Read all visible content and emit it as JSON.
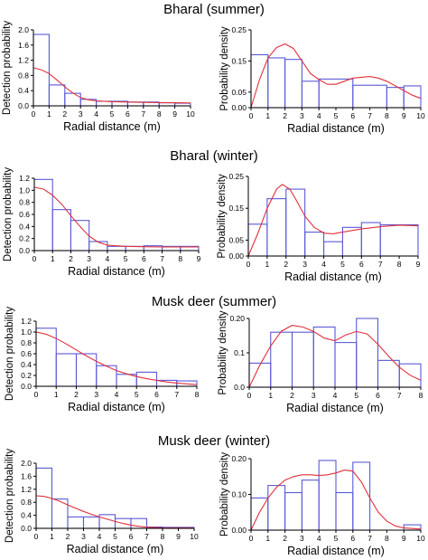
{
  "figure": {
    "titles": [
      "Bharal (summer)",
      "Bharal (winter)",
      "Musk deer (summer)",
      "Musk deer (winter)"
    ],
    "colors": {
      "bars": "#5a5ad6",
      "curve": "#e0303a",
      "axes": "#000000"
    }
  },
  "chart_data": [
    {
      "type": "bar",
      "panel": "bharal-summer-detection",
      "xlabel": "Radial distance (m)",
      "ylabel": "Detection probability",
      "xlim": [
        0,
        10
      ],
      "ylim": [
        0,
        2.0
      ],
      "xticks": [
        "0",
        "1",
        "2",
        "3",
        "4",
        "5",
        "6",
        "7",
        "8",
        "9",
        "10"
      ],
      "yticks": [
        {
          "v": 0,
          "t": "0.0"
        },
        {
          "v": 0.4,
          "t": "0.4"
        },
        {
          "v": 0.8,
          "t": "0.8"
        },
        {
          "v": 1.2,
          "t": "1.2"
        },
        {
          "v": 1.6,
          "t": "1.6"
        },
        {
          "v": 2.0,
          "t": "2.0"
        }
      ],
      "bins": [
        [
          0,
          1,
          1.88
        ],
        [
          1,
          2,
          0.55
        ],
        [
          2,
          3,
          0.33
        ],
        [
          3,
          4,
          0.17
        ],
        [
          4,
          5,
          0.12
        ],
        [
          5,
          6,
          0.12
        ],
        [
          6,
          7,
          0.1
        ],
        [
          7,
          8,
          0.1
        ],
        [
          8,
          9,
          0.08
        ],
        [
          9,
          10,
          0.07
        ]
      ],
      "curve": [
        [
          0,
          1.0
        ],
        [
          0.5,
          0.95
        ],
        [
          1,
          0.85
        ],
        [
          1.5,
          0.68
        ],
        [
          2,
          0.5
        ],
        [
          2.5,
          0.34
        ],
        [
          3,
          0.22
        ],
        [
          3.5,
          0.16
        ],
        [
          4,
          0.13
        ],
        [
          5,
          0.11
        ],
        [
          6,
          0.1
        ],
        [
          7,
          0.09
        ],
        [
          8,
          0.085
        ],
        [
          9,
          0.08
        ],
        [
          10,
          0.075
        ]
      ]
    },
    {
      "type": "bar",
      "panel": "bharal-summer-density",
      "xlabel": "Radial distance (m)",
      "ylabel": "Probability density",
      "xlim": [
        0,
        10
      ],
      "ylim": [
        0,
        0.25
      ],
      "xticks": [
        "0",
        "1",
        "2",
        "3",
        "4",
        "5",
        "6",
        "7",
        "8",
        "9",
        "10"
      ],
      "yticks": [
        {
          "v": 0,
          "t": "0.00"
        },
        {
          "v": 0.05,
          "t": "0.05"
        },
        {
          "v": 0.15,
          "t": "0.15"
        },
        {
          "v": 0.25,
          "t": "0.25"
        }
      ],
      "bins": [
        [
          0,
          1,
          0.17
        ],
        [
          1,
          2,
          0.16
        ],
        [
          2,
          3,
          0.155
        ],
        [
          3,
          4,
          0.085
        ],
        [
          4,
          6,
          0.092
        ],
        [
          6,
          8,
          0.072
        ],
        [
          8,
          9,
          0.065
        ],
        [
          9,
          10,
          0.07
        ]
      ],
      "curve": [
        [
          0,
          0
        ],
        [
          0.5,
          0.09
        ],
        [
          1,
          0.16
        ],
        [
          1.5,
          0.193
        ],
        [
          2,
          0.205
        ],
        [
          2.5,
          0.19
        ],
        [
          3,
          0.15
        ],
        [
          3.5,
          0.11
        ],
        [
          4,
          0.09
        ],
        [
          4.5,
          0.075
        ],
        [
          5,
          0.075
        ],
        [
          5.5,
          0.085
        ],
        [
          6,
          0.095
        ],
        [
          7,
          0.1
        ],
        [
          7.5,
          0.095
        ],
        [
          8,
          0.085
        ],
        [
          8.5,
          0.07
        ],
        [
          9,
          0.055
        ],
        [
          9.5,
          0.04
        ],
        [
          10,
          0.03
        ]
      ]
    },
    {
      "type": "bar",
      "panel": "bharal-winter-detection",
      "xlabel": "Radial distance (m)",
      "ylabel": "Detection probability",
      "xlim": [
        0,
        9
      ],
      "ylim": [
        0,
        1.2
      ],
      "xticks": [
        "0",
        "1",
        "2",
        "3",
        "4",
        "5",
        "6",
        "7",
        "8",
        "9"
      ],
      "yticks": [
        {
          "v": 0,
          "t": "0.0"
        },
        {
          "v": 0.2,
          "t": "0.2"
        },
        {
          "v": 0.4,
          "t": "0.4"
        },
        {
          "v": 0.6,
          "t": "0.6"
        },
        {
          "v": 0.8,
          "t": "0.8"
        },
        {
          "v": 1.0,
          "t": "1.0"
        },
        {
          "v": 1.2,
          "t": "1.2"
        }
      ],
      "bins": [
        [
          0,
          1,
          1.18
        ],
        [
          1,
          2,
          0.68
        ],
        [
          2,
          3,
          0.5
        ],
        [
          3,
          4,
          0.15
        ],
        [
          4,
          5,
          0.07
        ],
        [
          5,
          6,
          0.07
        ],
        [
          6,
          7,
          0.08
        ],
        [
          7,
          8,
          0.07
        ],
        [
          8,
          9,
          0.07
        ]
      ],
      "curve": [
        [
          0,
          1.05
        ],
        [
          0.5,
          1.02
        ],
        [
          1,
          0.92
        ],
        [
          1.5,
          0.77
        ],
        [
          2,
          0.58
        ],
        [
          2.5,
          0.4
        ],
        [
          3,
          0.24
        ],
        [
          3.5,
          0.14
        ],
        [
          4,
          0.09
        ],
        [
          5,
          0.07
        ],
        [
          6,
          0.065
        ],
        [
          7,
          0.06
        ],
        [
          8,
          0.06
        ],
        [
          9,
          0.06
        ]
      ]
    },
    {
      "type": "bar",
      "panel": "bharal-winter-density",
      "xlabel": "Radial distance (m)",
      "ylabel": "Probability density",
      "xlim": [
        0,
        9
      ],
      "ylim": [
        0,
        0.25
      ],
      "xticks": [
        "0",
        "1",
        "2",
        "3",
        "4",
        "5",
        "6",
        "7",
        "8",
        "9"
      ],
      "yticks": [
        {
          "v": 0,
          "t": "0.00"
        },
        {
          "v": 0.05,
          "t": "0.05"
        },
        {
          "v": 0.15,
          "t": "0.15"
        },
        {
          "v": 0.25,
          "t": "0.25"
        }
      ],
      "bins": [
        [
          0,
          1,
          0.1
        ],
        [
          1,
          2,
          0.18
        ],
        [
          2,
          3,
          0.21
        ],
        [
          3,
          4,
          0.075
        ],
        [
          4,
          5,
          0.045
        ],
        [
          5,
          6,
          0.09
        ],
        [
          6,
          7,
          0.105
        ],
        [
          7,
          9,
          0.098
        ]
      ],
      "curve": [
        [
          0,
          0
        ],
        [
          0.5,
          0.07
        ],
        [
          1,
          0.15
        ],
        [
          1.5,
          0.21
        ],
        [
          1.8,
          0.225
        ],
        [
          2.2,
          0.21
        ],
        [
          2.5,
          0.18
        ],
        [
          3,
          0.125
        ],
        [
          3.5,
          0.09
        ],
        [
          4,
          0.072
        ],
        [
          4.5,
          0.07
        ],
        [
          5,
          0.075
        ],
        [
          6,
          0.085
        ],
        [
          7,
          0.092
        ],
        [
          8,
          0.097
        ],
        [
          9,
          0.095
        ]
      ]
    },
    {
      "type": "bar",
      "panel": "musk-summer-detection",
      "xlabel": "Radial distance (m)",
      "ylabel": "Detection probability",
      "xlim": [
        0,
        8
      ],
      "ylim": [
        0,
        1.2
      ],
      "xticks": [
        "0",
        "1",
        "2",
        "3",
        "4",
        "5",
        "6",
        "7",
        "8"
      ],
      "yticks": [
        {
          "v": 0,
          "t": "0.0"
        },
        {
          "v": 0.2,
          "t": "0.2"
        },
        {
          "v": 0.4,
          "t": "0.4"
        },
        {
          "v": 0.6,
          "t": "0.6"
        },
        {
          "v": 0.8,
          "t": "0.8"
        },
        {
          "v": 1.0,
          "t": "1.0"
        },
        {
          "v": 1.2,
          "t": "1.2"
        }
      ],
      "bins": [
        [
          0,
          1,
          1.07
        ],
        [
          1,
          2,
          0.6
        ],
        [
          2,
          3,
          0.6
        ],
        [
          3,
          4,
          0.38
        ],
        [
          4,
          5,
          0.22
        ],
        [
          5,
          6,
          0.26
        ],
        [
          6,
          7,
          0.11
        ],
        [
          7,
          8,
          0.1
        ]
      ],
      "curve": [
        [
          0,
          1.0
        ],
        [
          0.5,
          0.96
        ],
        [
          1,
          0.88
        ],
        [
          1.5,
          0.78
        ],
        [
          2,
          0.67
        ],
        [
          2.5,
          0.56
        ],
        [
          3,
          0.46
        ],
        [
          3.5,
          0.37
        ],
        [
          4,
          0.29
        ],
        [
          4.5,
          0.23
        ],
        [
          5,
          0.18
        ],
        [
          5.5,
          0.14
        ],
        [
          6,
          0.11
        ],
        [
          6.5,
          0.08
        ],
        [
          7,
          0.06
        ],
        [
          7.5,
          0.045
        ],
        [
          8,
          0.03
        ]
      ]
    },
    {
      "type": "bar",
      "panel": "musk-summer-density",
      "xlabel": "Radial distance (m)",
      "ylabel": "Probability density",
      "xlim": [
        0,
        8
      ],
      "ylim": [
        0,
        0.2
      ],
      "xticks": [
        "0",
        "1",
        "2",
        "3",
        "4",
        "5",
        "6",
        "7",
        "8"
      ],
      "yticks": [
        {
          "v": 0,
          "t": "0.0"
        },
        {
          "v": 0.1,
          "t": "0.1"
        },
        {
          "v": 0.2,
          "t": "0.20"
        }
      ],
      "bins": [
        [
          0,
          1,
          0.07
        ],
        [
          1,
          2,
          0.16
        ],
        [
          2,
          3,
          0.16
        ],
        [
          3,
          4,
          0.175
        ],
        [
          4,
          5,
          0.13
        ],
        [
          5,
          6,
          0.2
        ],
        [
          6,
          7,
          0.078
        ],
        [
          7,
          8,
          0.068
        ]
      ],
      "curve": [
        [
          0,
          0
        ],
        [
          0.5,
          0.065
        ],
        [
          1,
          0.12
        ],
        [
          1.5,
          0.163
        ],
        [
          2,
          0.18
        ],
        [
          2.5,
          0.175
        ],
        [
          3,
          0.162
        ],
        [
          3.5,
          0.143
        ],
        [
          4,
          0.135
        ],
        [
          4.5,
          0.152
        ],
        [
          5,
          0.162
        ],
        [
          5.5,
          0.155
        ],
        [
          6,
          0.125
        ],
        [
          6.5,
          0.09
        ],
        [
          7,
          0.058
        ],
        [
          7.5,
          0.035
        ],
        [
          8,
          0.02
        ]
      ]
    },
    {
      "type": "bar",
      "panel": "musk-winter-detection",
      "xlabel": "Radial distance (m)",
      "ylabel": "Detection probability",
      "xlim": [
        0,
        10
      ],
      "ylim": [
        0,
        2.0
      ],
      "xticks": [
        "0",
        "1",
        "2",
        "3",
        "4",
        "5",
        "6",
        "7",
        "8",
        "9",
        "10"
      ],
      "yticks": [
        {
          "v": 0,
          "t": "0.0"
        },
        {
          "v": 0.4,
          "t": "0.4"
        },
        {
          "v": 0.8,
          "t": "0.8"
        },
        {
          "v": 1.2,
          "t": "1.2"
        },
        {
          "v": 1.6,
          "t": "1.6"
        },
        {
          "v": 2.0,
          "t": "2.0"
        }
      ],
      "bins": [
        [
          0,
          1,
          1.85
        ],
        [
          1,
          2,
          0.9
        ],
        [
          2,
          3,
          0.35
        ],
        [
          3,
          4,
          0.35
        ],
        [
          4,
          5,
          0.42
        ],
        [
          5,
          6,
          0.3
        ],
        [
          6,
          7,
          0.3
        ],
        [
          7,
          8,
          0.04
        ],
        [
          8,
          9,
          0.03
        ],
        [
          9,
          10,
          0.03
        ]
      ],
      "curve": [
        [
          0,
          1.0
        ],
        [
          0.5,
          0.98
        ],
        [
          1,
          0.92
        ],
        [
          1.5,
          0.83
        ],
        [
          2,
          0.72
        ],
        [
          2.5,
          0.62
        ],
        [
          3,
          0.52
        ],
        [
          3.5,
          0.43
        ],
        [
          4,
          0.35
        ],
        [
          4.5,
          0.28
        ],
        [
          5,
          0.21
        ],
        [
          5.5,
          0.15
        ],
        [
          6,
          0.1
        ],
        [
          6.5,
          0.06
        ],
        [
          7,
          0.035
        ],
        [
          8,
          0.015
        ],
        [
          9,
          0.01
        ],
        [
          10,
          0.01
        ]
      ]
    },
    {
      "type": "bar",
      "panel": "musk-winter-density",
      "xlabel": "Radial distance (m)",
      "ylabel": "Probability density",
      "xlim": [
        0,
        10
      ],
      "ylim": [
        0,
        0.2
      ],
      "xticks": [
        "0",
        "1",
        "2",
        "3",
        "4",
        "5",
        "6",
        "7",
        "8",
        "9",
        "10"
      ],
      "yticks": [
        {
          "v": 0,
          "t": "0.00"
        },
        {
          "v": 0.1,
          "t": "0.10"
        },
        {
          "v": 0.2,
          "t": "0.20"
        }
      ],
      "bins": [
        [
          0,
          1,
          0.09
        ],
        [
          1,
          2,
          0.125
        ],
        [
          2,
          3,
          0.105
        ],
        [
          3,
          4,
          0.14
        ],
        [
          4,
          5,
          0.195
        ],
        [
          5,
          6,
          0.105
        ],
        [
          6,
          7,
          0.19
        ],
        [
          9,
          10,
          0.015
        ]
      ],
      "curve": [
        [
          0,
          0
        ],
        [
          0.5,
          0.05
        ],
        [
          1,
          0.09
        ],
        [
          1.5,
          0.12
        ],
        [
          2,
          0.14
        ],
        [
          2.5,
          0.15
        ],
        [
          3,
          0.155
        ],
        [
          3.5,
          0.155
        ],
        [
          4,
          0.153
        ],
        [
          4.5,
          0.155
        ],
        [
          5,
          0.16
        ],
        [
          5.5,
          0.168
        ],
        [
          6,
          0.165
        ],
        [
          6.5,
          0.135
        ],
        [
          7,
          0.09
        ],
        [
          7.5,
          0.05
        ],
        [
          8,
          0.025
        ],
        [
          8.5,
          0.012
        ],
        [
          9,
          0.006
        ],
        [
          10,
          0.003
        ]
      ]
    }
  ]
}
